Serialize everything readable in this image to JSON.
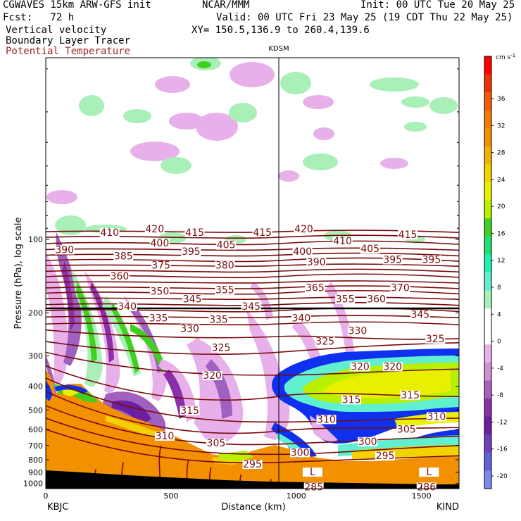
{
  "header": {
    "model": "CGWAVES 15km ARW-GFS init",
    "org": "NCAR/MMM",
    "init": "Init: 00 UTC Tue 20 May 25",
    "fcst": "Fcst:   72 h",
    "valid": "Valid: 00 UTC Fri 23 May 25 (19 CDT Thu 22 May 25)",
    "field1": "Vertical velocity",
    "field2": "Boundary Layer Tracer",
    "field3": "Potential Temperature",
    "xy": "XY= 150.5,136.9 to 260.4,139.6"
  },
  "colors": {
    "theta": "#7a0a0a",
    "field3_text": "#a02020",
    "tracer_orange": "#f39000",
    "tracer_yellow": "#e8f000",
    "tracer_green": "#40d020",
    "tracer_blue": "#1030f0",
    "updraft_green": "#a8f0b8",
    "downdraft_pink": "#e8b0ea",
    "downdraft_purple": "#8a2fa8"
  },
  "chart_data": {
    "type": "heatmap",
    "xlabel": "Distance (km)",
    "ylabel": "Pressure (hPa), log scale",
    "x_ticks": [
      0,
      500,
      1000,
      1500
    ],
    "xlim": [
      0,
      1650
    ],
    "y_ticks": [
      100,
      200,
      300,
      400,
      500,
      600,
      700,
      800,
      900,
      1000
    ],
    "y_scale": "log",
    "ylim": [
      1050,
      18
    ],
    "station_left": "KBJC",
    "station_right": "KIND",
    "station_mid": "KDSM",
    "station_mid_km": 930,
    "colorbar": {
      "unit": "cm s",
      "unit_sup": "-1",
      "ticks": [
        36,
        32,
        28,
        24,
        20,
        16,
        12,
        8,
        4,
        0,
        -4,
        -8,
        -12,
        -16,
        -20
      ],
      "colors": [
        "#ff0000",
        "#f23000",
        "#f55a00",
        "#f37a00",
        "#f39000",
        "#f4b000",
        "#f2d200",
        "#e8f000",
        "#b8f000",
        "#40d020",
        "#20e070",
        "#20f0b0",
        "#60f0d0",
        "#a8f0b8",
        "#ffffff",
        "#ffffff",
        "#e8b0ea",
        "#d090d8",
        "#a860c0",
        "#8a2fa8",
        "#6a20a0",
        "#7040c0",
        "#6060e0",
        "#7a88f0"
      ]
    },
    "theta_labels": [
      {
        "text": "420",
        "x": 435,
        "p": 93
      },
      {
        "text": "420",
        "x": 1030,
        "p": 93
      },
      {
        "text": "415",
        "x": 595,
        "p": 96
      },
      {
        "text": "415",
        "x": 865,
        "p": 96
      },
      {
        "text": "415",
        "x": 1445,
        "p": 98
      },
      {
        "text": "410",
        "x": 255,
        "p": 96
      },
      {
        "text": "410",
        "x": 1185,
        "p": 104
      },
      {
        "text": "405",
        "x": 720,
        "p": 108
      },
      {
        "text": "405",
        "x": 1295,
        "p": 112
      },
      {
        "text": "400",
        "x": 455,
        "p": 106
      },
      {
        "text": "400",
        "x": 1025,
        "p": 115
      },
      {
        "text": "395",
        "x": 580,
        "p": 115
      },
      {
        "text": "395",
        "x": 1385,
        "p": 124
      },
      {
        "text": "395",
        "x": 1540,
        "p": 124
      },
      {
        "text": "390",
        "x": 75,
        "p": 113
      },
      {
        "text": "390",
        "x": 1080,
        "p": 127
      },
      {
        "text": "385",
        "x": 310,
        "p": 120
      },
      {
        "text": "380",
        "x": 715,
        "p": 131
      },
      {
        "text": "375",
        "x": 460,
        "p": 131
      },
      {
        "text": "370",
        "x": 1415,
        "p": 162
      },
      {
        "text": "365",
        "x": 1075,
        "p": 162
      },
      {
        "text": "360",
        "x": 295,
        "p": 145
      },
      {
        "text": "360",
        "x": 1320,
        "p": 180
      },
      {
        "text": "355",
        "x": 715,
        "p": 165
      },
      {
        "text": "355",
        "x": 1195,
        "p": 180
      },
      {
        "text": "350",
        "x": 455,
        "p": 167
      },
      {
        "text": "345",
        "x": 585,
        "p": 180
      },
      {
        "text": "345",
        "x": 820,
        "p": 193
      },
      {
        "text": "345",
        "x": 1495,
        "p": 208
      },
      {
        "text": "340",
        "x": 325,
        "p": 193
      },
      {
        "text": "340",
        "x": 1020,
        "p": 215
      },
      {
        "text": "335",
        "x": 450,
        "p": 215
      },
      {
        "text": "335",
        "x": 690,
        "p": 218
      },
      {
        "text": "330",
        "x": 575,
        "p": 238
      },
      {
        "text": "330",
        "x": 1245,
        "p": 243
      },
      {
        "text": "325",
        "x": 700,
        "p": 285
      },
      {
        "text": "325",
        "x": 1115,
        "p": 268
      },
      {
        "text": "325",
        "x": 1555,
        "p": 262
      },
      {
        "text": "320",
        "x": 665,
        "p": 370
      },
      {
        "text": "320",
        "x": 1255,
        "p": 340
      },
      {
        "text": "320",
        "x": 1385,
        "p": 340
      },
      {
        "text": "315",
        "x": 575,
        "p": 515
      },
      {
        "text": "315",
        "x": 1220,
        "p": 465
      },
      {
        "text": "315",
        "x": 1455,
        "p": 445
      },
      {
        "text": "310",
        "x": 475,
        "p": 655
      },
      {
        "text": "310",
        "x": 1120,
        "p": 560
      },
      {
        "text": "310",
        "x": 1560,
        "p": 545
      },
      {
        "text": "305",
        "x": 680,
        "p": 700
      },
      {
        "text": "305",
        "x": 1440,
        "p": 615
      },
      {
        "text": "300",
        "x": 1015,
        "p": 765
      },
      {
        "text": "300",
        "x": 1285,
        "p": 690
      },
      {
        "text": "295",
        "x": 825,
        "p": 855
      },
      {
        "text": "295",
        "x": 1355,
        "p": 790
      },
      {
        "text": "L",
        "x": 1065,
        "p": 920
      },
      {
        "text": "L",
        "x": 1530,
        "p": 920
      },
      {
        "text": "285",
        "x": 1070,
        "p": 1060
      },
      {
        "text": "286",
        "x": 1520,
        "p": 1060
      }
    ]
  }
}
